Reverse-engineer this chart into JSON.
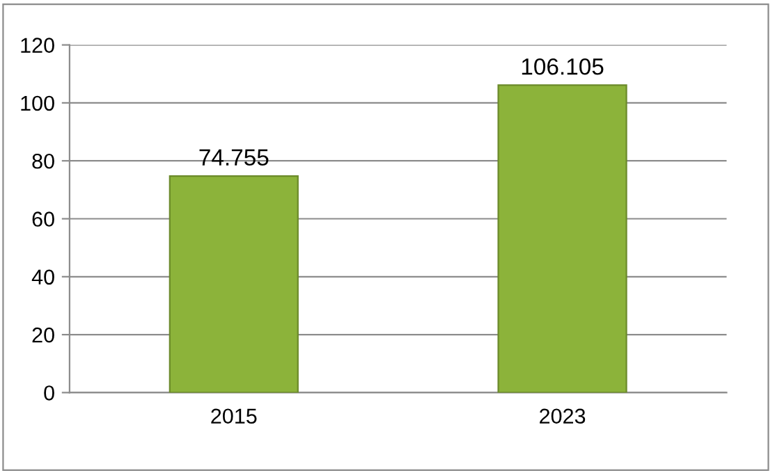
{
  "chart_data": {
    "type": "bar",
    "categories": [
      "2015",
      "2023"
    ],
    "values": [
      74.755,
      106.105
    ],
    "color": "#8cb33a",
    "ylim": [
      0,
      120
    ],
    "yticks": [
      0,
      20,
      40,
      60,
      80,
      100,
      120
    ],
    "grid": "y",
    "data_labels": true
  }
}
